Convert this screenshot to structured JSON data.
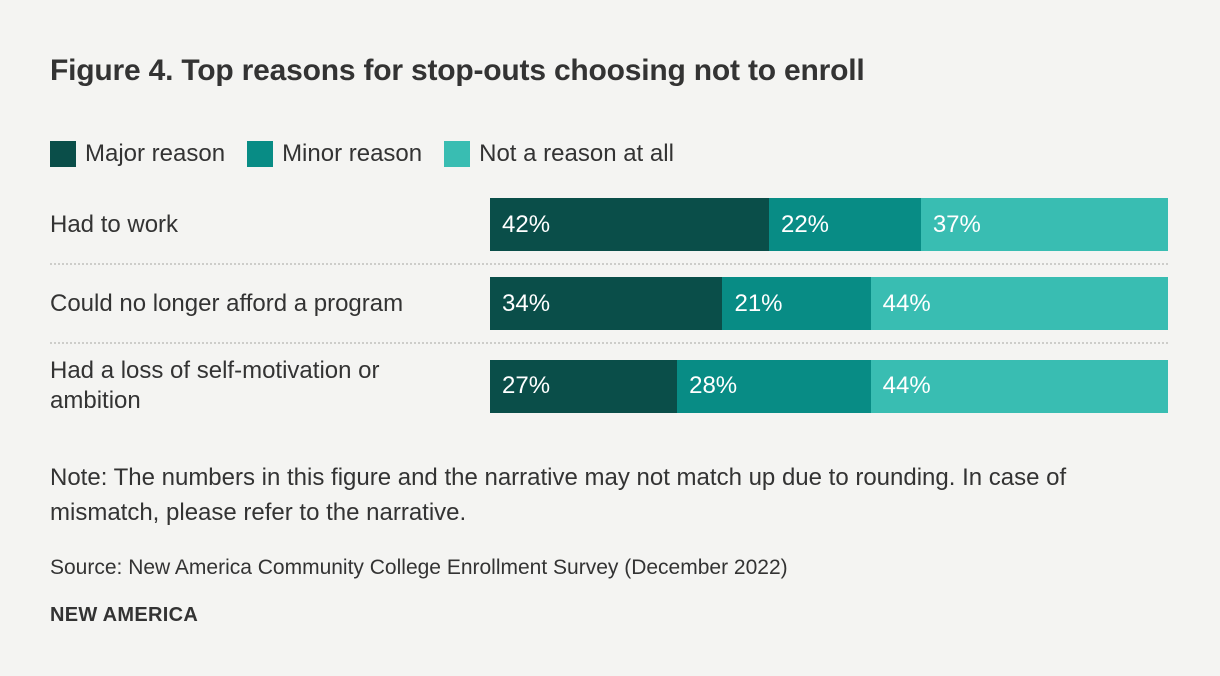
{
  "note": "Note: The numbers in this figure and the narrative may not match up due to rounding. In case of mismatch, please refer to the narrative.",
  "source": "Source: New America Community College Enrollment Survey (December 2022)",
  "logo": "NEW AMERICA",
  "colors": {
    "background": "#f4f4f2",
    "text": "#333333",
    "separator": "#cdcdca",
    "bar_label": "#ffffff"
  },
  "chart_data": {
    "type": "bar",
    "stacked": true,
    "orientation": "horizontal",
    "title": "Figure 4. Top reasons for stop-outs choosing not to enroll",
    "legend_position": "top",
    "value_suffix": "%",
    "categories": [
      "Had to work",
      "Could no longer afford a program",
      "Had a loss of self-motivation or ambition"
    ],
    "series": [
      {
        "name": "Major reason",
        "color": "#0a4e49",
        "values": [
          42,
          34,
          27
        ]
      },
      {
        "name": "Minor reason",
        "color": "#088c85",
        "values": [
          22,
          21,
          28
        ]
      },
      {
        "name": "Not a reason at all",
        "color": "#39bdb2",
        "values": [
          37,
          44,
          44
        ]
      }
    ]
  }
}
